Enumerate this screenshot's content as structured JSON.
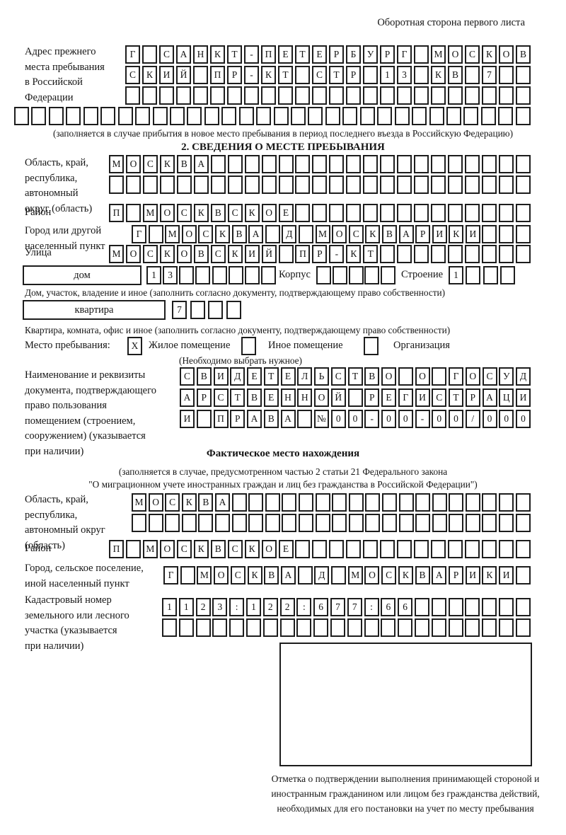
{
  "page": {
    "header_note": "Оборотная сторона первого листа"
  },
  "prev_address": {
    "label_lines": [
      "Адрес прежнего",
      "места пребывания",
      "в Российской",
      "Федерации"
    ],
    "rows": [
      {
        "chars": "Г САНКТ-ПЕТЕРБУРГ МОСКОВ",
        "len": 24
      },
      {
        "chars": "СКИЙ ПР-КТ СТР 13 КВ 7",
        "len": 24
      },
      {
        "chars": "",
        "len": 24
      },
      {
        "chars": "",
        "len": 30
      }
    ],
    "note": "(заполняется в случае прибытия в новое место пребывания в период последнего въезда в Российскую Федерацию)"
  },
  "section2": {
    "title": "2. СВЕДЕНИЯ О МЕСТЕ ПРЕБЫВАНИЯ",
    "region": {
      "label_lines": [
        "Область, край,",
        "республика,",
        "автономный",
        "округ (область)"
      ],
      "rows": [
        {
          "chars": "МОСКВА",
          "len": 25
        },
        {
          "chars": "",
          "len": 25
        }
      ]
    },
    "district": {
      "label": "Район",
      "row": {
        "chars": "П МОСКВСКОЕ",
        "len": 25
      }
    },
    "city": {
      "label_lines": [
        "Город или другой",
        "населенный пункт"
      ],
      "row": {
        "chars": "Г МОСКВА Д МОСКВАРИКИ",
        "len": 24
      }
    },
    "street": {
      "label": "Улица",
      "row": {
        "chars": "МОСКОВСКИЙ ПР-КТ",
        "len": 25
      }
    },
    "house": {
      "box_label": "дом",
      "row": {
        "chars": "13",
        "len": 8
      },
      "korpus_label": "Корпус",
      "korpus_row": {
        "chars": "",
        "len": 5
      },
      "stroenie_label": "Строение",
      "stroenie_row": {
        "chars": "1",
        "len": 4
      }
    },
    "house_note": "Дом, участок, владение и иное (заполнить согласно документу, подтверждающему право собственности)",
    "apartment": {
      "box_label": "квартира",
      "row": {
        "chars": "7",
        "len": 4
      }
    },
    "apartment_note": "Квартира, комната, офис и иное (заполнить согласно документу, подтверждающему право собственности)",
    "stay_type": {
      "label": "Место пребывания:",
      "options": [
        {
          "checked": "X",
          "label": "Жилое помещение"
        },
        {
          "checked": "",
          "label": "Иное помещение"
        },
        {
          "checked": "",
          "label": "Организация"
        }
      ],
      "note": "(Необходимо выбрать нужное)"
    },
    "doc": {
      "label_lines": [
        "Наименование и реквизиты",
        "документа, подтверждающего",
        "право пользования",
        "помещением (строением,",
        "сооружением) (указывается",
        "при наличии)"
      ],
      "rows": [
        {
          "chars": "СВИДЕТЕЛЬСТВО О ГОСУД",
          "len": 21
        },
        {
          "chars": "АРСТВЕННОЙ РЕГИСТРАЦИ",
          "len": 21
        },
        {
          "chars": "И ПРАВА №00-00-00/000",
          "len": 21
        }
      ]
    }
  },
  "actual_location": {
    "title": "Фактическое место нахождения",
    "note_lines": [
      "(заполняется в случае, предусмотренном частью 2 статьи 21 Федерального закона",
      "\"О миграционном учете иностранных граждан и лиц без гражданства в Российской Федерации\")"
    ],
    "region": {
      "label_lines": [
        "Область, край,",
        "республика,",
        "автономный округ",
        "(область)"
      ],
      "rows": [
        {
          "chars": "МОСКВА",
          "len": 24
        },
        {
          "chars": "",
          "len": 24
        }
      ]
    },
    "district": {
      "label": "Район",
      "row": {
        "chars": "П МОСКВСКОЕ",
        "len": 25
      }
    },
    "city": {
      "label_lines": [
        "Город, сельское поселение,",
        "иной населенный пункт"
      ],
      "row": {
        "chars": "Г МОСКВА Д МОСКВАРИКИ",
        "len": 22
      }
    },
    "cadastral": {
      "label_lines": [
        "Кадастровый номер",
        "земельного или лесного",
        "участка (указывается",
        "при наличии)"
      ],
      "rows": [
        {
          "chars": "1123:122:677:66",
          "len": 22
        },
        {
          "chars": "",
          "len": 22
        }
      ]
    },
    "stamp_note": "Отметка о подтверждении выполнения принимающей стороной и иностранным гражданином или лицом без гражданства действий, необходимых для его постановки на учет по месту пребывания"
  }
}
